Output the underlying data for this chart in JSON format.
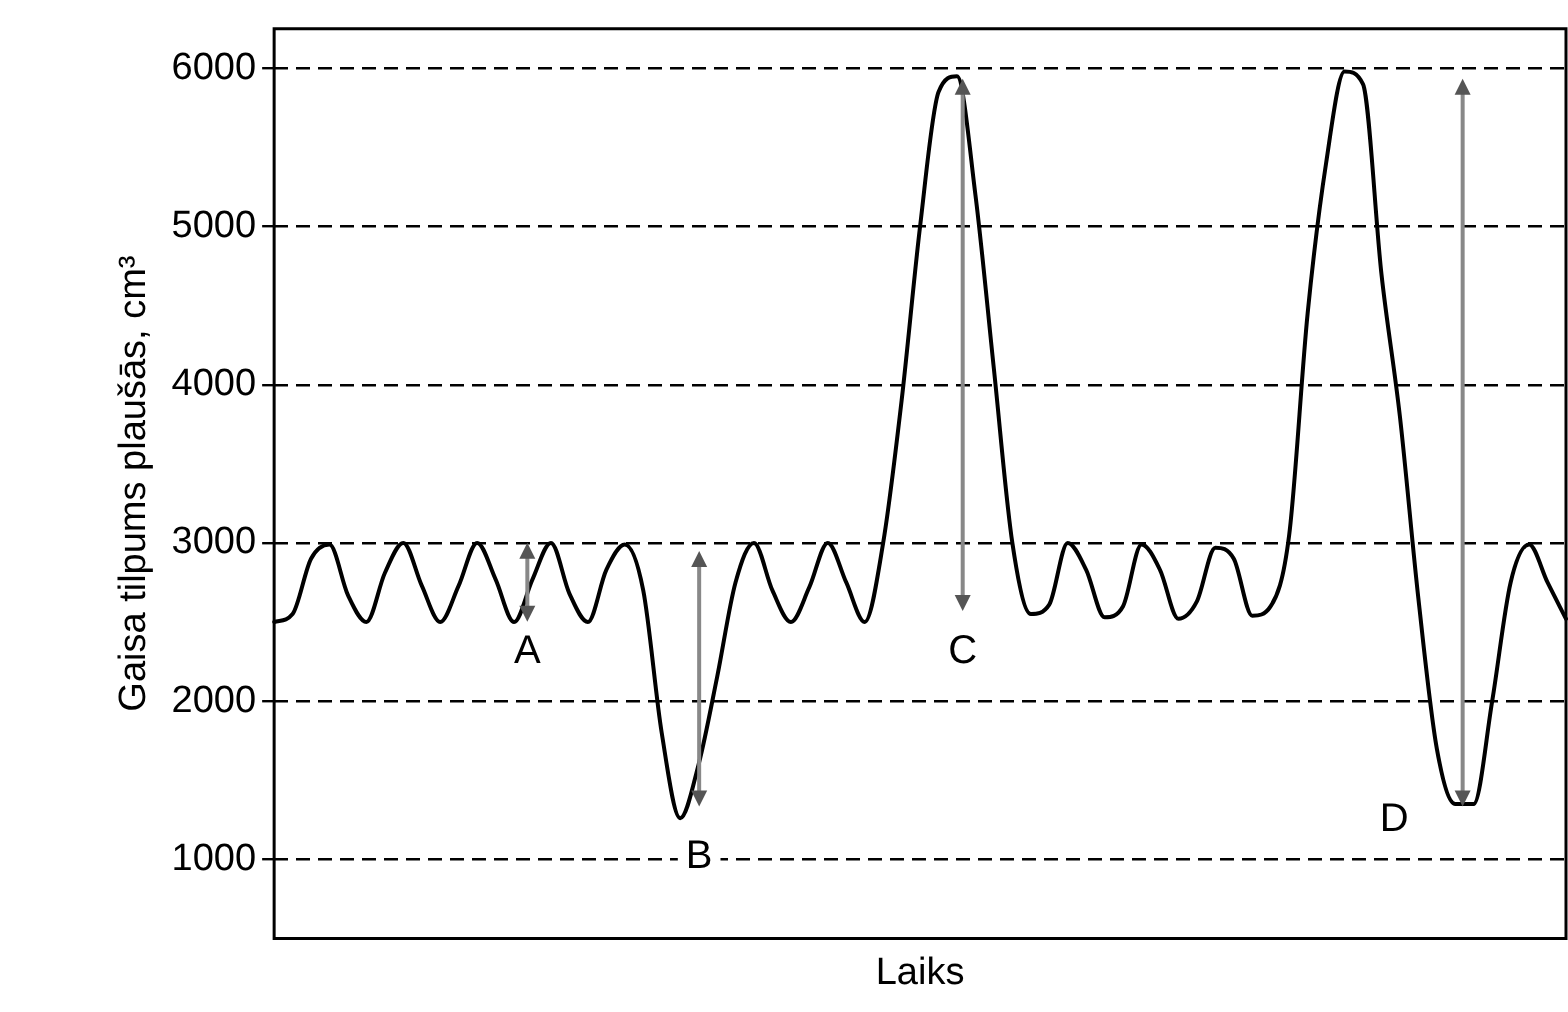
{
  "chart_data": {
    "type": "line",
    "ylabel": "Gaisa tilpums plaušās, cm³",
    "xlabel": "Laiks",
    "categories": [
      null,
      null,
      null,
      null,
      null,
      null,
      null,
      null,
      null,
      null,
      null,
      null,
      null,
      null,
      null,
      null,
      null,
      null,
      null,
      null,
      null,
      null,
      null,
      null,
      null,
      null,
      null,
      null,
      null,
      null,
      null,
      null,
      null,
      null,
      null,
      null,
      null,
      null,
      null,
      null,
      null,
      null,
      null,
      null,
      null,
      null,
      null,
      null,
      null,
      null,
      null,
      null,
      null,
      null,
      null,
      null,
      null,
      null,
      null,
      null,
      null,
      null,
      null,
      null,
      null,
      null,
      null,
      null,
      null,
      null,
      null
    ],
    "series": [
      {
        "color": "#000000",
        "values": [
          2500,
          2550,
          2900,
          2990,
          2670,
          2500,
          2810,
          3000,
          2730,
          2500,
          2730,
          3000,
          2770,
          2500,
          2770,
          3000,
          2680,
          2500,
          2830,
          2990,
          2700,
          1800,
          1260,
          1600,
          2150,
          2750,
          3000,
          2700,
          2500,
          2720,
          3000,
          2750,
          2500,
          3000,
          3900,
          5000,
          5850,
          5950,
          5200,
          4100,
          3000,
          2550,
          2610,
          3000,
          2830,
          2530,
          2600,
          2990,
          2830,
          2520,
          2630,
          2970,
          2900,
          2540,
          2600,
          3050,
          4450,
          5400,
          5980,
          5900,
          4700,
          3800,
          2650,
          1700,
          1350,
          1350,
          2000,
          2750,
          2990,
          2750,
          2520
        ]
      }
    ],
    "ylim": [
      500,
      6250
    ],
    "yticks": [
      1000,
      2000,
      3000,
      4000,
      5000,
      6000
    ],
    "grid": "y",
    "line_style": "solid",
    "marker": "none",
    "legend": false,
    "tick_labels": "y",
    "annotations": [
      "A",
      "B",
      "C",
      "D"
    ]
  }
}
